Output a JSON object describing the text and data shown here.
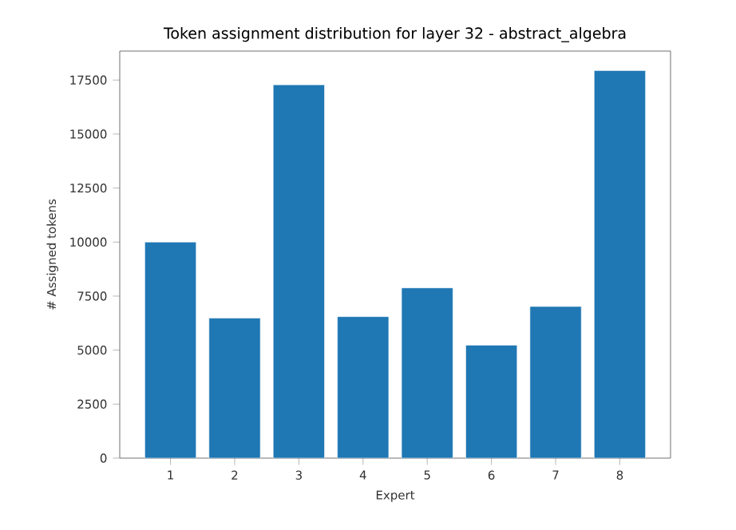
{
  "chart_data": {
    "type": "bar",
    "title": "Token assignment distribution for layer 32 - abstract_algebra",
    "xlabel": "Expert",
    "ylabel": "# Assigned tokens",
    "categories": [
      "1",
      "2",
      "3",
      "4",
      "5",
      "6",
      "7",
      "8"
    ],
    "values": [
      10000,
      6480,
      17280,
      6550,
      7880,
      5230,
      7020,
      17940
    ],
    "color": "#1f77b4",
    "ylim": [
      0,
      18840
    ],
    "yticks": [
      0,
      2500,
      5000,
      7500,
      10000,
      12500,
      15000,
      17500
    ]
  }
}
